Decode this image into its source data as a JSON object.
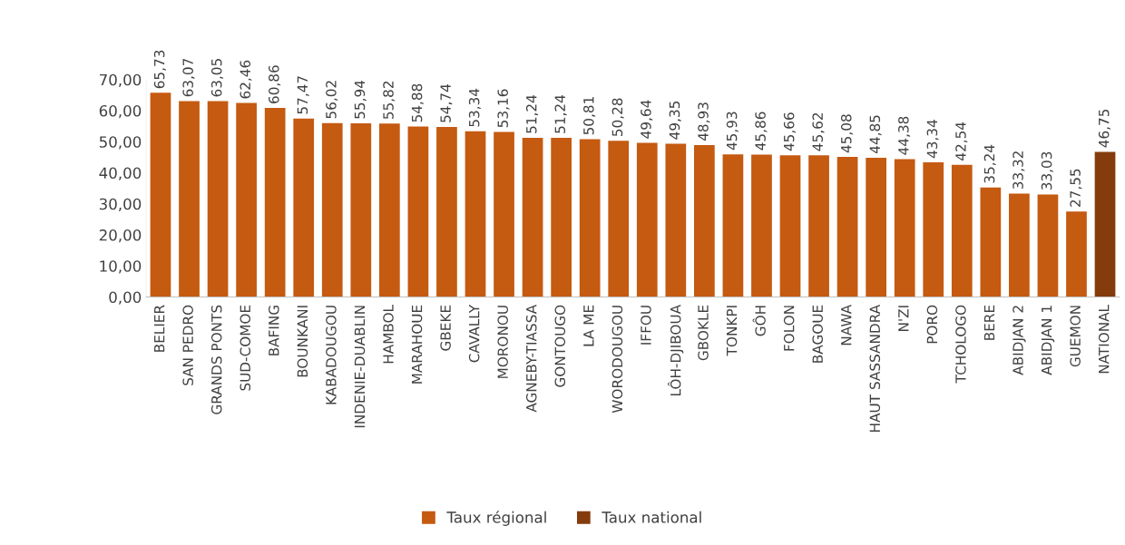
{
  "chart_data": {
    "type": "bar",
    "stacked": true,
    "categories": [
      "BELIER",
      "SAN PEDRO",
      "GRANDS PONTS",
      "SUD-COMOE",
      "BAFING",
      "BOUNKANI",
      "KABADOUGOU",
      "INDENIE-DUABLIN",
      "HAMBOL",
      "MARAHOUE",
      "GBEKE",
      "CAVALLY",
      "MORONOU",
      "AGNEBY-TIASSA",
      "GONTOUGO",
      "LA ME",
      "WORODOUGOU",
      "IFFOU",
      "LÔH-DJIBOUA",
      "GBOKLE",
      "TONKPI",
      "GÔH",
      "FOLON",
      "BAGOUE",
      "NAWA",
      "HAUT SASSANDRA",
      "N'ZI",
      "PORO",
      "TCHOLOGO",
      "BERE",
      "ABIDJAN 2",
      "ABIDJAN 1",
      "GUEMON",
      "NATIONAL"
    ],
    "series": [
      {
        "name": "Taux régional",
        "color": "#c55a11",
        "values": [
          65.73,
          63.07,
          63.05,
          62.46,
          60.86,
          57.47,
          56.02,
          55.94,
          55.82,
          54.88,
          54.74,
          53.34,
          53.16,
          51.24,
          51.24,
          50.81,
          50.28,
          49.64,
          49.35,
          48.93,
          45.93,
          45.86,
          45.66,
          45.62,
          45.08,
          44.85,
          44.38,
          43.34,
          42.54,
          35.24,
          33.32,
          33.03,
          27.55,
          null
        ],
        "value_labels": [
          "65,73",
          "63,07",
          "63,05",
          "62,46",
          "60,86",
          "57,47",
          "56,02",
          "55,94",
          "55,82",
          "54,88",
          "54,74",
          "53,34",
          "53,16",
          "51,24",
          "51,24",
          "50,81",
          "50,28",
          "49,64",
          "49,35",
          "48,93",
          "45,93",
          "45,86",
          "45,66",
          "45,62",
          "45,08",
          "44,85",
          "44,38",
          "43,34",
          "42,54",
          "35,24",
          "33,32",
          "33,03",
          "27,55",
          null
        ]
      },
      {
        "name": "Taux national",
        "color": "#843c0c",
        "values": [
          null,
          null,
          null,
          null,
          null,
          null,
          null,
          null,
          null,
          null,
          null,
          null,
          null,
          null,
          null,
          null,
          null,
          null,
          null,
          null,
          null,
          null,
          null,
          null,
          null,
          null,
          null,
          null,
          null,
          null,
          null,
          null,
          null,
          46.75
        ],
        "value_labels": [
          null,
          null,
          null,
          null,
          null,
          null,
          null,
          null,
          null,
          null,
          null,
          null,
          null,
          null,
          null,
          null,
          null,
          null,
          null,
          null,
          null,
          null,
          null,
          null,
          null,
          null,
          null,
          null,
          null,
          null,
          null,
          null,
          null,
          "46,75"
        ]
      }
    ],
    "ylim": [
      0,
      70
    ],
    "yticks": [
      {
        "value": 0,
        "label": "0,00"
      },
      {
        "value": 10,
        "label": "10,00"
      },
      {
        "value": 20,
        "label": "20,00"
      },
      {
        "value": 30,
        "label": "30,00"
      },
      {
        "value": 40,
        "label": "40,00"
      },
      {
        "value": 50,
        "label": "50,00"
      },
      {
        "value": 60,
        "label": "60,00"
      },
      {
        "value": 70,
        "label": "70,00"
      }
    ],
    "grid": false,
    "legend": "bottom"
  }
}
